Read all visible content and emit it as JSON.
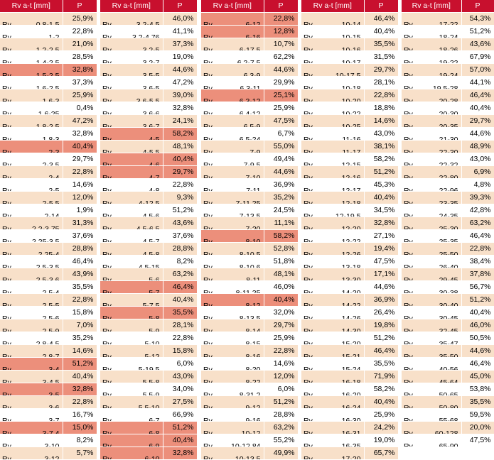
{
  "header": {
    "size": "Rv a-t [mm]",
    "pct": "P"
  },
  "highlight_color": "#ec8f7b",
  "stripe_color": "#f8e0c9",
  "header_color": "#c8102e",
  "columns": [
    [
      {
        "p": "Rv",
        "s": "0,8-1,5",
        "v": "25,9%"
      },
      {
        "p": "Rv",
        "s": "1-2",
        "v": "22,8%"
      },
      {
        "p": "Rv",
        "s": "1,2-2,5",
        "v": "21,0%"
      },
      {
        "p": "Rv",
        "s": "1,4-2,5",
        "v": "28,5%"
      },
      {
        "p": "Rv",
        "s": "1,5-2,5",
        "v": "32,8%",
        "hl": true
      },
      {
        "p": "Rv",
        "s": "1,6-2,5",
        "v": "37,3%"
      },
      {
        "p": "Rv",
        "s": "1,6-3",
        "v": "25,9%"
      },
      {
        "p": "Rv",
        "s": "1,6-25",
        "v": "0,4%"
      },
      {
        "p": "Rv",
        "s": "1,8-2,5",
        "v": "47,2%"
      },
      {
        "p": "Rv",
        "s": "1,8-3",
        "v": "32,8%"
      },
      {
        "p": "Rv",
        "s": "2-3",
        "v": "40,4%",
        "hl": true
      },
      {
        "p": "Rv",
        "s": "2-3,5",
        "v": "29,7%"
      },
      {
        "p": "Rv",
        "s": "2-4",
        "v": "22,8%"
      },
      {
        "p": "Rv",
        "s": "2-5",
        "v": "14,6%"
      },
      {
        "p": "Rv",
        "s": "2-5,5",
        "v": "12,0%"
      },
      {
        "p": "Rv",
        "s": "2-14",
        "v": "1,9%"
      },
      {
        "p": "Rv",
        "s": "2,2-3,75",
        "v": "31,3%"
      },
      {
        "p": "Rv",
        "s": "2,25-3,5",
        "v": "37,6%"
      },
      {
        "p": "Rv",
        "s": "2,25-4",
        "v": "28,8%"
      },
      {
        "p": "Rv",
        "s": "2,5-3,5",
        "v": "46,4%"
      },
      {
        "p": "Rv",
        "s": "2,5-3,6",
        "v": "43,9%"
      },
      {
        "p": "Rv",
        "s": "2,5-4",
        "v": "35,5%"
      },
      {
        "p": "Rv",
        "s": "2,5-5",
        "v": "22,8%"
      },
      {
        "p": "Rv",
        "s": "2,5-6",
        "v": "15,8%"
      },
      {
        "p": "Rv",
        "s": "2,5-9",
        "v": "7,0%"
      },
      {
        "p": "Rv",
        "s": "2,8-4,5",
        "v": "35,2%"
      },
      {
        "p": "Rv",
        "s": "2,8-7",
        "v": "14,6%"
      },
      {
        "p": "Rv",
        "s": "3-4",
        "v": "51,2%",
        "hl": true
      },
      {
        "p": "Rv",
        "s": "3-4,5",
        "v": "40,4%"
      },
      {
        "p": "Rv",
        "s": "3-5",
        "v": "32,8%",
        "hl": true
      },
      {
        "p": "Rv",
        "s": "3-6",
        "v": "22,8%"
      },
      {
        "p": "Rv",
        "s": "3-7",
        "v": "16,7%"
      },
      {
        "p": "Rv",
        "s": "3-7,4",
        "v": "15,0%",
        "hl": true
      },
      {
        "p": "Rv",
        "s": "3-10",
        "v": "8,2%"
      },
      {
        "p": "Rv",
        "s": "3-12",
        "v": "5,7%"
      }
    ],
    [
      {
        "p": "Rv",
        "s": "3,2-4,5",
        "v": "46,0%"
      },
      {
        "p": "Rv",
        "s": "3,2-4,76",
        "v": "41,1%"
      },
      {
        "p": "Rv",
        "s": "3,2-5",
        "v": "37,3%"
      },
      {
        "p": "Rv",
        "s": "3,2-7",
        "v": "19,0%"
      },
      {
        "p": "Rv",
        "s": "3,5-5",
        "v": "44,6%"
      },
      {
        "p": "Rv",
        "s": "3,6-5",
        "v": "47,2%"
      },
      {
        "p": "Rv",
        "s": "3,6-5,5",
        "v": "39,0%"
      },
      {
        "p": "Rv",
        "s": "3,6-6",
        "v": "32,8%"
      },
      {
        "p": "Rv",
        "s": "3,6-7",
        "v": "24,1%"
      },
      {
        "p": "Rv",
        "s": "4-5",
        "v": "58,2%",
        "hl": true
      },
      {
        "p": "Rv",
        "s": "4-5,5",
        "v": "48,1%"
      },
      {
        "p": "Rv",
        "s": "4-6",
        "v": "40,4%",
        "hl": true
      },
      {
        "p": "Rv",
        "s": "4-7",
        "v": "29,7%",
        "hl": true
      },
      {
        "p": "Rv",
        "s": "4-8",
        "v": "22,8%"
      },
      {
        "p": "Rv",
        "s": "4-12,5",
        "v": "9,3%"
      },
      {
        "p": "Rv",
        "s": "4,5-6",
        "v": "51,2%"
      },
      {
        "p": "Rv",
        "s": "4,5-6,5",
        "v": "43,6%"
      },
      {
        "p": "Rv",
        "s": "4,5-7",
        "v": "37,6%"
      },
      {
        "p": "Rv",
        "s": "4,5-8",
        "v": "28,8%"
      },
      {
        "p": "Rv",
        "s": "4,5-15",
        "v": "8,2%"
      },
      {
        "p": "Rv",
        "s": "5-6",
        "v": "63,2%"
      },
      {
        "p": "Rv",
        "s": "5-7",
        "v": "46,4%",
        "hl": true
      },
      {
        "p": "Rv",
        "s": "5-7,5",
        "v": "40,4%"
      },
      {
        "p": "Rv",
        "s": "5-8",
        "v": "35,5%",
        "hl": true
      },
      {
        "p": "Rv",
        "s": "5-9",
        "v": "28,1%"
      },
      {
        "p": "Rv",
        "s": "5-10",
        "v": "22,8%"
      },
      {
        "p": "Rv",
        "s": "5-12",
        "v": "15,8%"
      },
      {
        "p": "Rv",
        "s": "5-19,5",
        "v": "6,0%"
      },
      {
        "p": "Rv",
        "s": "5,5-8",
        "v": "43,0%"
      },
      {
        "p": "Rv",
        "s": "5,5-9",
        "v": "34,0%"
      },
      {
        "p": "Rv",
        "s": "5,5-10",
        "v": "27,5%"
      },
      {
        "p": "Rv",
        "s": "6-7",
        "v": "66,9%"
      },
      {
        "p": "Rv",
        "s": "6-8",
        "v": "51,2%",
        "hl": true
      },
      {
        "p": "Rv",
        "s": "6-9",
        "v": "40,4%",
        "hl": true
      },
      {
        "p": "Rv",
        "s": "6-10",
        "v": "32,8%",
        "hl": true
      }
    ],
    [
      {
        "p": "Rv",
        "s": "6-12",
        "v": "22,8%",
        "hl": true
      },
      {
        "p": "Rv",
        "s": "6-16",
        "v": "12,8%",
        "hl": true
      },
      {
        "p": "Rv",
        "s": "6-17,5",
        "v": "10,7%"
      },
      {
        "p": "Rv",
        "s": "6,2-7,5",
        "v": "62,2%"
      },
      {
        "p": "Rv",
        "s": "6,3-9",
        "v": "44,6%"
      },
      {
        "p": "Rv",
        "s": "6,3-11",
        "v": "29,9%"
      },
      {
        "p": "Rv",
        "s": "6,3-12",
        "v": "25,1%",
        "hl": true
      },
      {
        "p": "Rv",
        "s": "6,4-12",
        "v": "25,9%"
      },
      {
        "p": "Rv",
        "s": "6,5-9",
        "v": "47,5%"
      },
      {
        "p": "Rv",
        "s": "6,5-24",
        "v": "6,7%"
      },
      {
        "p": "Rv",
        "s": "7-9",
        "v": "55,0%"
      },
      {
        "p": "Rv",
        "s": "7-9,5",
        "v": "49,4%"
      },
      {
        "p": "Rv",
        "s": "7-10",
        "v": "44,6%"
      },
      {
        "p": "Rv",
        "s": "7-11",
        "v": "36,9%"
      },
      {
        "p": "Rv",
        "s": "7-11,25",
        "v": "35,2%"
      },
      {
        "p": "Rv",
        "s": "7-13,5",
        "v": "24,5%"
      },
      {
        "p": "Rv",
        "s": "7-20",
        "v": "11,1%"
      },
      {
        "p": "Rv",
        "s": "8-10",
        "v": "58,2%",
        "hl": true
      },
      {
        "p": "Rv",
        "s": "8-10,5",
        "v": "52,8%"
      },
      {
        "p": "Rv",
        "s": "8-10,6",
        "v": "51,8%"
      },
      {
        "p": "Rv",
        "s": "8-11",
        "v": "48,1%"
      },
      {
        "p": "Rv",
        "s": "8-11,25",
        "v": "46,0%"
      },
      {
        "p": "Rv",
        "s": "8-12",
        "v": "40,4%",
        "hl": true
      },
      {
        "p": "Rv",
        "s": "8-13,5",
        "v": "32,0%"
      },
      {
        "p": "Rv",
        "s": "8-14",
        "v": "29,7%"
      },
      {
        "p": "Rv",
        "s": "8-15",
        "v": "25,9%"
      },
      {
        "p": "Rv",
        "s": "8-16",
        "v": "22,8%"
      },
      {
        "p": "Rv",
        "s": "8-20",
        "v": "14,6%"
      },
      {
        "p": "Rv",
        "s": "8-22",
        "v": "12,0%"
      },
      {
        "p": "Rv",
        "s": "8-31,2",
        "v": "6,0%"
      },
      {
        "p": "Rv",
        "s": "9-12",
        "v": "51,2%"
      },
      {
        "p": "Rv",
        "s": "9-16",
        "v": "28,8%"
      },
      {
        "p": "Rv",
        "s": "10-12",
        "v": "63,2%"
      },
      {
        "p": "Rv",
        "s": "10-12,84",
        "v": "55,2%"
      },
      {
        "p": "Rv",
        "s": "10-13,5",
        "v": "49,9%"
      }
    ],
    [
      {
        "p": "Rv",
        "s": "10-14",
        "v": "46,4%"
      },
      {
        "p": "Rv",
        "s": "10-15",
        "v": "40,4%"
      },
      {
        "p": "Rv",
        "s": "10-16",
        "v": "35,5%"
      },
      {
        "p": "Rv",
        "s": "10-17",
        "v": "31,5%"
      },
      {
        "p": "Rv",
        "s": "10-17,5",
        "v": "29,7%"
      },
      {
        "p": "Rv",
        "s": "10-18",
        "v": "28,1%"
      },
      {
        "p": "Rv",
        "s": "10-20",
        "v": "22,8%"
      },
      {
        "p": "Rv",
        "s": "10-22",
        "v": "18,8%"
      },
      {
        "p": "Rv",
        "s": "10-25",
        "v": "14,6%"
      },
      {
        "p": "Rv",
        "s": "11-16",
        "v": "43,0%"
      },
      {
        "p": "Rv",
        "s": "11-17",
        "v": "38,1%"
      },
      {
        "p": "Rv",
        "s": "12-15",
        "v": "58,2%"
      },
      {
        "p": "Rv",
        "s": "12-16",
        "v": "51,2%"
      },
      {
        "p": "Rv",
        "s": "12-17",
        "v": "45,3%"
      },
      {
        "p": "Rv",
        "s": "12-18",
        "v": "40,4%"
      },
      {
        "p": "Rv",
        "s": "12-19,5",
        "v": "34,5%"
      },
      {
        "p": "Rv",
        "s": "12-20",
        "v": "32,8%"
      },
      {
        "p": "Rv",
        "s": "12-22",
        "v": "27,1%"
      },
      {
        "p": "Rv",
        "s": "12-26",
        "v": "19,4%"
      },
      {
        "p": "Rv",
        "s": "13-18",
        "v": "47,5%"
      },
      {
        "p": "Rv",
        "s": "13-30",
        "v": "17,1%"
      },
      {
        "p": "Rv",
        "s": "14-20",
        "v": "44,6%"
      },
      {
        "p": "Rv",
        "s": "14-22",
        "v": "36,9%"
      },
      {
        "p": "Rv",
        "s": "14-26",
        "v": "26,4%"
      },
      {
        "p": "Rv",
        "s": "14-30",
        "v": "19,8%"
      },
      {
        "p": "Rv",
        "s": "15-20",
        "v": "51,2%"
      },
      {
        "p": "Rv",
        "s": "15-21",
        "v": "46,4%"
      },
      {
        "p": "Rv",
        "s": "15-24",
        "v": "35,5%"
      },
      {
        "p": "Rv",
        "s": "16-18",
        "v": "71,9%"
      },
      {
        "p": "Rv",
        "s": "16-20",
        "v": "58,2%"
      },
      {
        "p": "Rv",
        "s": "16-24",
        "v": "40,4%"
      },
      {
        "p": "Rv",
        "s": "16-30",
        "v": "25,9%"
      },
      {
        "p": "Rv",
        "s": "16-31",
        "v": "24,2%"
      },
      {
        "p": "Rv",
        "s": "16-35",
        "v": "19,0%"
      },
      {
        "p": "Rv",
        "s": "17-20",
        "v": "65,7%"
      }
    ],
    [
      {
        "p": "Rv",
        "s": "17-22",
        "v": "54,3%"
      },
      {
        "p": "Rv",
        "s": "18-24",
        "v": "51,2%"
      },
      {
        "p": "Rv",
        "s": "18-26",
        "v": "43,6%"
      },
      {
        "p": "Rv",
        "s": "19-22",
        "v": "67,9%"
      },
      {
        "p": "Rv",
        "s": "19-24",
        "v": "57,0%"
      },
      {
        "p": "Rv",
        "s": "19,5-28",
        "v": "44,1%"
      },
      {
        "p": "Rv",
        "s": "20-28",
        "v": "46,4%"
      },
      {
        "p": "Rv",
        "s": "20-30",
        "v": "40,4%"
      },
      {
        "p": "Rv",
        "s": "20-35",
        "v": "29,7%"
      },
      {
        "p": "Rv",
        "s": "21-30",
        "v": "44,6%"
      },
      {
        "p": "Rv",
        "s": "22-30",
        "v": "48,9%"
      },
      {
        "p": "Rv",
        "s": "22-32",
        "v": "43,0%"
      },
      {
        "p": "Rv",
        "s": "22-80",
        "v": "6,9%"
      },
      {
        "p": "Rv",
        "s": "22-96",
        "v": "4,8%"
      },
      {
        "p": "Rv",
        "s": "23-35",
        "v": "39,3%"
      },
      {
        "p": "Rv",
        "s": "24-35",
        "v": "42,8%"
      },
      {
        "p": "Rv",
        "s": "25-30",
        "v": "63,2%"
      },
      {
        "p": "Rv",
        "s": "25-35",
        "v": "46,4%"
      },
      {
        "p": "Rv",
        "s": "25-50",
        "v": "22,8%"
      },
      {
        "p": "Rv",
        "s": "26-40",
        "v": "38,4%"
      },
      {
        "p": "Rv",
        "s": "29-45",
        "v": "37,8%"
      },
      {
        "p": "Rv",
        "s": "30-38",
        "v": "56,7%"
      },
      {
        "p": "Rv",
        "s": "30-40",
        "v": "51,2%"
      },
      {
        "p": "Rv",
        "s": "30-45",
        "v": "40,4%"
      },
      {
        "p": "Rv",
        "s": "32-45",
        "v": "46,0%"
      },
      {
        "p": "Rv",
        "s": "35-47",
        "v": "50,5%"
      },
      {
        "p": "Rv",
        "s": "35-50",
        "v": "44,6%"
      },
      {
        "p": "Rv",
        "s": "40-56",
        "v": "46,4%"
      },
      {
        "p": "Rv",
        "s": "45-64",
        "v": "45,0%"
      },
      {
        "p": "Rv",
        "s": "50-65",
        "v": "53,8%"
      },
      {
        "p": "Rv",
        "s": "50-80",
        "v": "35,5%"
      },
      {
        "p": "Rv",
        "s": "55-68",
        "v": "59,5%"
      },
      {
        "p": "Rv",
        "s": "60-128",
        "v": "20,0%"
      },
      {
        "p": "Rv",
        "s": "65-90",
        "v": "47,5%"
      }
    ]
  ]
}
